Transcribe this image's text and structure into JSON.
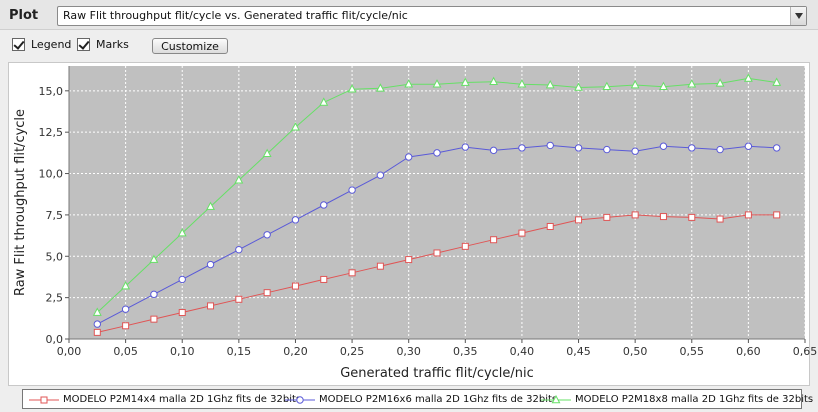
{
  "toolbar": {
    "plot_label": "Plot",
    "plot_select_value": "Raw Flit throughput flit/cycle vs. Generated traffic flit/cycle/nic"
  },
  "options": {
    "legend_label": "Legend",
    "legend_checked": true,
    "marks_label": "Marks",
    "marks_checked": true,
    "customize_label": "Customize"
  },
  "colors": {
    "plot_background": "#c0c0c0",
    "series_red": "#e05555",
    "series_blue": "#5a5ad8",
    "series_green": "#66e066"
  },
  "chart_data": {
    "type": "line",
    "title": "",
    "xlabel": "Generated traffic flit/cycle/nic",
    "ylabel": "Raw Flit throughput flit/cycle",
    "xlim": [
      0.0,
      0.65
    ],
    "ylim": [
      0.0,
      16.5
    ],
    "grid": true,
    "legend_position": "bottom",
    "x_ticks": [
      "0,00",
      "0,05",
      "0,10",
      "0,15",
      "0,20",
      "0,25",
      "0,30",
      "0,35",
      "0,40",
      "0,45",
      "0,50",
      "0,55",
      "0,60",
      "0,65"
    ],
    "y_ticks": [
      "0,0",
      "2,5",
      "5,0",
      "7,5",
      "10,0",
      "12,5",
      "15,0"
    ],
    "x": [
      0.025,
      0.05,
      0.075,
      0.1,
      0.125,
      0.15,
      0.175,
      0.2,
      0.225,
      0.25,
      0.275,
      0.3,
      0.325,
      0.35,
      0.375,
      0.4,
      0.425,
      0.45,
      0.475,
      0.5,
      0.525,
      0.55,
      0.575,
      0.6,
      0.625
    ],
    "series": [
      {
        "name": "MODELO P2M14x4 malla 2D 1Ghz fits de 32bits",
        "marker": "square",
        "color": "#e05555",
        "values": [
          0.4,
          0.8,
          1.2,
          1.6,
          2.0,
          2.4,
          2.8,
          3.2,
          3.6,
          4.0,
          4.4,
          4.8,
          5.2,
          5.6,
          6.0,
          6.4,
          6.8,
          7.2,
          7.35,
          7.5,
          7.4,
          7.35,
          7.25,
          7.5,
          7.5
        ]
      },
      {
        "name": "MODELO P2M16x6 malla 2D 1Ghz fits de 32bits",
        "marker": "circle",
        "color": "#5a5ad8",
        "values": [
          0.9,
          1.8,
          2.7,
          3.6,
          4.5,
          5.4,
          6.3,
          7.2,
          8.1,
          9.0,
          9.9,
          11.0,
          11.25,
          11.6,
          11.4,
          11.55,
          11.7,
          11.55,
          11.45,
          11.35,
          11.65,
          11.55,
          11.45,
          11.65,
          11.55
        ]
      },
      {
        "name": "MODELO P2M18x8 malla 2D 1Ghz fits de 32bits",
        "marker": "triangle",
        "color": "#66e066",
        "values": [
          1.6,
          3.2,
          4.8,
          6.4,
          8.0,
          9.6,
          11.2,
          12.8,
          14.3,
          15.1,
          15.15,
          15.4,
          15.4,
          15.5,
          15.55,
          15.4,
          15.35,
          15.2,
          15.25,
          15.35,
          15.25,
          15.4,
          15.45,
          15.75,
          15.5
        ]
      }
    ]
  }
}
